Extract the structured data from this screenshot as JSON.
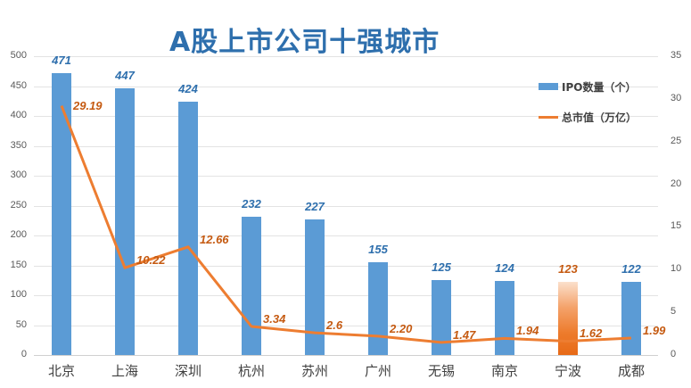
{
  "title": "A股上市公司十强城市",
  "legend": {
    "bar_label": "IPO数量（个）",
    "line_label": "总市值（万亿）"
  },
  "left_axis": {
    "ticks": [
      "500",
      "450",
      "400",
      "350",
      "300",
      "250",
      "200",
      "150",
      "100",
      "50",
      "0"
    ]
  },
  "right_axis": {
    "ticks": [
      "35",
      "30",
      "25",
      "20",
      "15",
      "10",
      "5",
      "0"
    ]
  },
  "colors": {
    "bar": "#5b9bd5",
    "highlight_bar": "#ed7d31",
    "line": "#ed7d31",
    "bar_label": "#2e6fad",
    "line_label": "#c55a11",
    "title": "#2e6fad"
  },
  "categories": [
    "北京",
    "上海",
    "深圳",
    "杭州",
    "苏州",
    "广州",
    "无锡",
    "南京",
    "宁波",
    "成都"
  ],
  "bar_labels": [
    "471",
    "447",
    "424",
    "232",
    "227",
    "155",
    "125",
    "124",
    "123",
    "122"
  ],
  "line_labels": [
    "29.19",
    "10.22",
    "12.66",
    "3.34",
    "2.6",
    "2.20",
    "1.47",
    "1.94",
    "1.62",
    "1.99"
  ],
  "chart_data": {
    "type": "bar",
    "title": "A股上市公司十强城市",
    "categories": [
      "北京",
      "上海",
      "深圳",
      "杭州",
      "苏州",
      "广州",
      "无锡",
      "南京",
      "宁波",
      "成都"
    ],
    "series": [
      {
        "name": "IPO数量（个）",
        "type": "bar",
        "axis": "left",
        "values": [
          471,
          447,
          424,
          232,
          227,
          155,
          125,
          124,
          123,
          122
        ]
      },
      {
        "name": "总市值（万亿）",
        "type": "line",
        "axis": "right",
        "values": [
          29.19,
          10.22,
          12.66,
          3.34,
          2.6,
          2.2,
          1.47,
          1.94,
          1.62,
          1.99
        ]
      }
    ],
    "highlight_category": "宁波",
    "xlabel": "",
    "ylabel": "",
    "ylim": [
      0,
      500
    ],
    "y2lim": [
      0,
      35
    ],
    "grid": true,
    "legend_position": "top-right"
  }
}
